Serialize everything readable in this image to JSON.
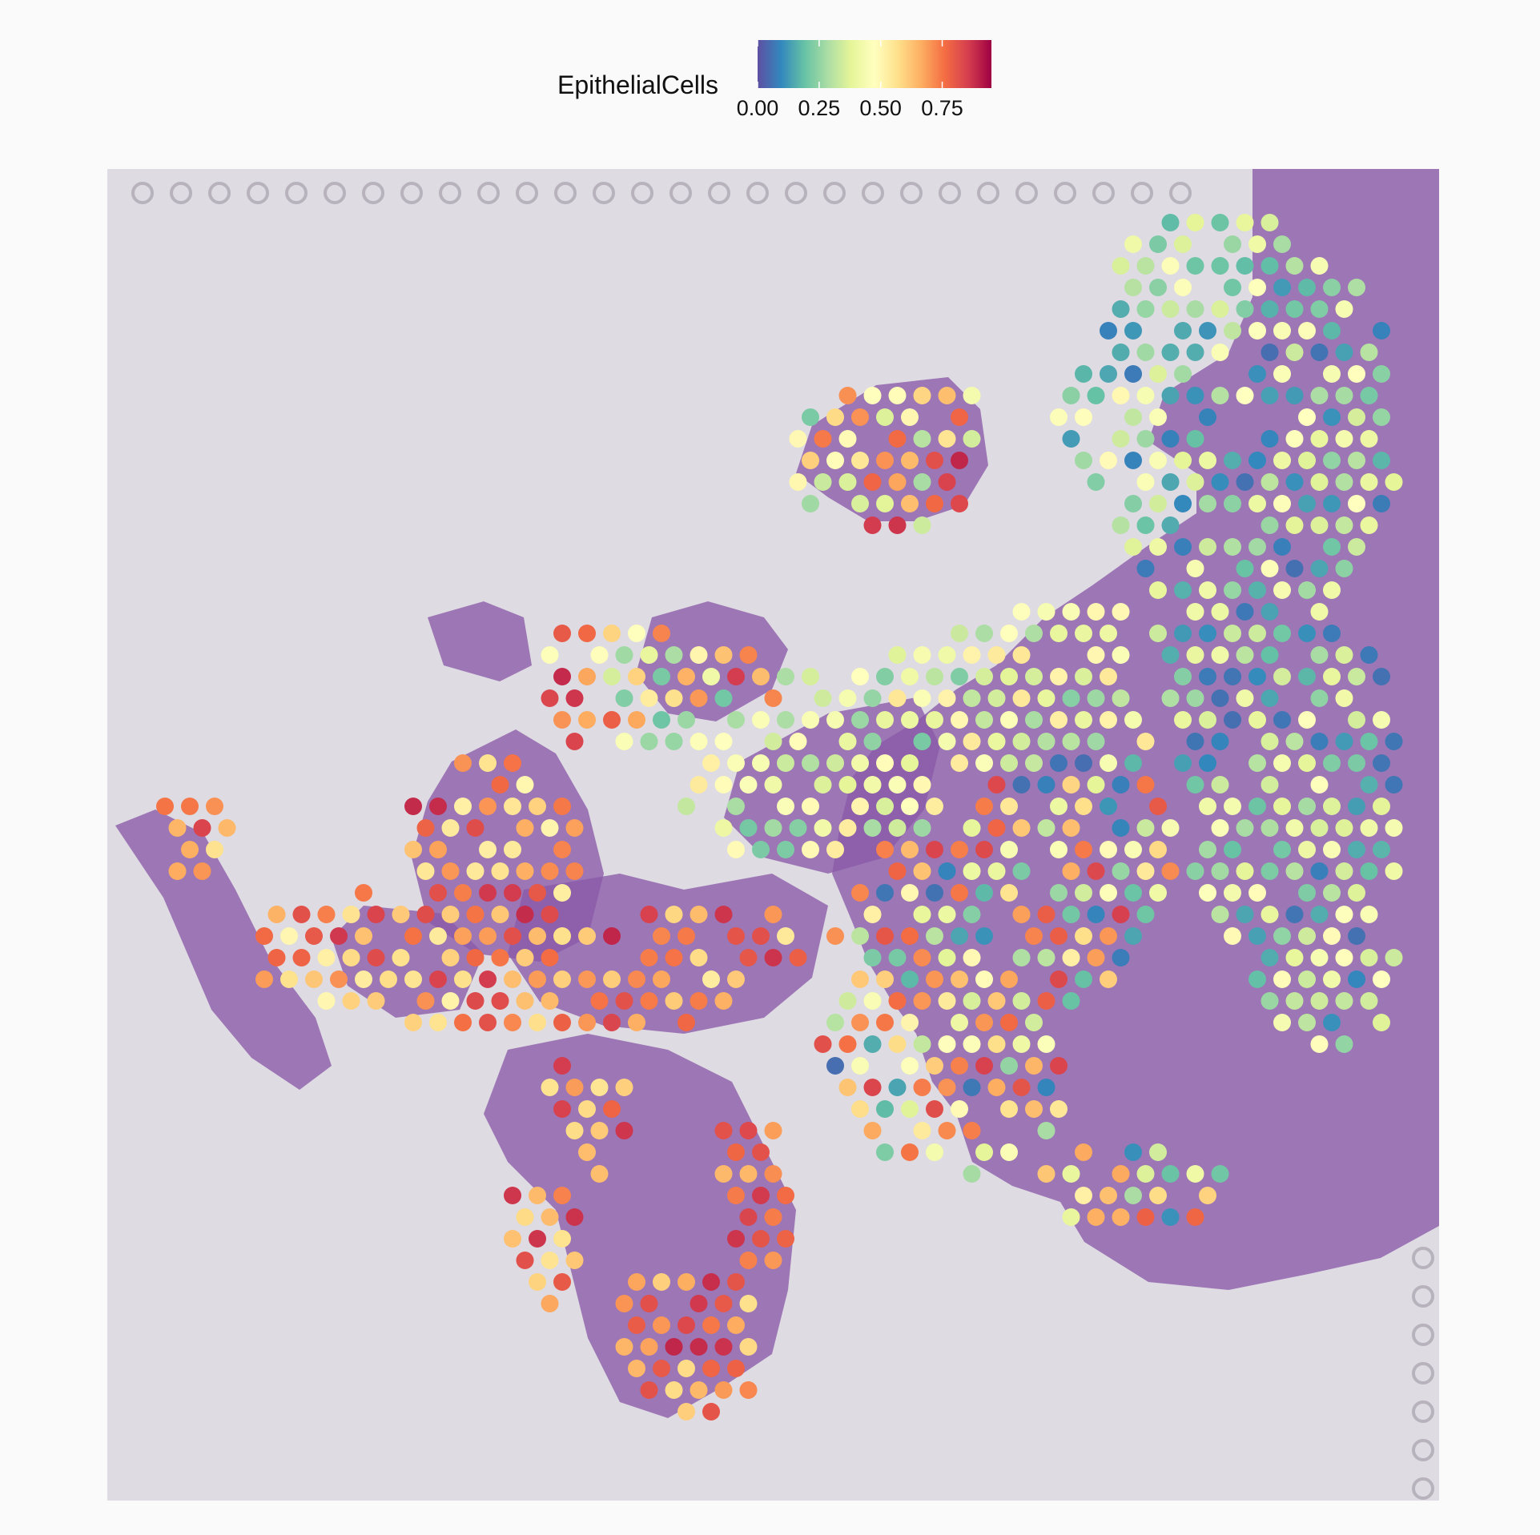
{
  "chart_data": {
    "type": "scatter",
    "subtype": "spatial-transcriptomics-spot-overlay",
    "title": "",
    "xlabel": "",
    "ylabel": "",
    "color_legend": {
      "title": "EpithelialCells",
      "position": "top-center",
      "scale": [
        0.0,
        0.95
      ],
      "ticks": [
        0.0,
        0.25,
        0.5,
        0.75
      ],
      "tick_labels": [
        "0.00",
        "0.25",
        "0.50",
        "0.75"
      ],
      "palette": [
        "#5e4fa2",
        "#3288bd",
        "#66c2a5",
        "#abdda4",
        "#e6f598",
        "#ffffbf",
        "#fee08b",
        "#fdae61",
        "#f46d43",
        "#d53e4f",
        "#9e0142"
      ]
    },
    "background": "H&E tissue image",
    "grid": false,
    "value_clusters": [
      {
        "region": "upper-right lobe",
        "range": [
          0.05,
          0.5
        ]
      },
      {
        "region": "upper-center lobe",
        "range": [
          0.2,
          0.9
        ]
      },
      {
        "region": "left lobes",
        "range": [
          0.5,
          0.9
        ]
      },
      {
        "region": "center bridge",
        "range": [
          0.2,
          0.55
        ]
      },
      {
        "region": "bottom-left lobe",
        "range": [
          0.55,
          0.9
        ]
      },
      {
        "region": "right large region",
        "range": [
          0.05,
          0.85
        ]
      }
    ]
  },
  "colors": {
    "page_bg": "#fafafa",
    "slide_bg": "#dedbe2",
    "tissue": "#8b5aa8"
  }
}
